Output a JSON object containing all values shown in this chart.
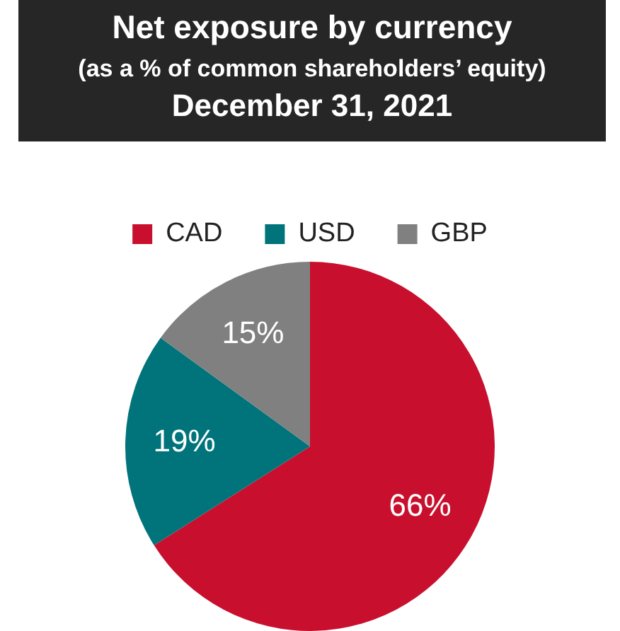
{
  "chart_data": {
    "type": "pie",
    "title": "Net exposure by currency",
    "subtitle": "(as a % of common shareholders’ equity)",
    "annotations": [
      "December 31, 2021"
    ],
    "categories": [
      "CAD",
      "USD",
      "GBP"
    ],
    "values": [
      66,
      19,
      15
    ],
    "colors": [
      "#c8102e",
      "#00747a",
      "#808080"
    ],
    "value_labels": [
      "66%",
      "19%",
      "15%"
    ],
    "legend": "top"
  }
}
